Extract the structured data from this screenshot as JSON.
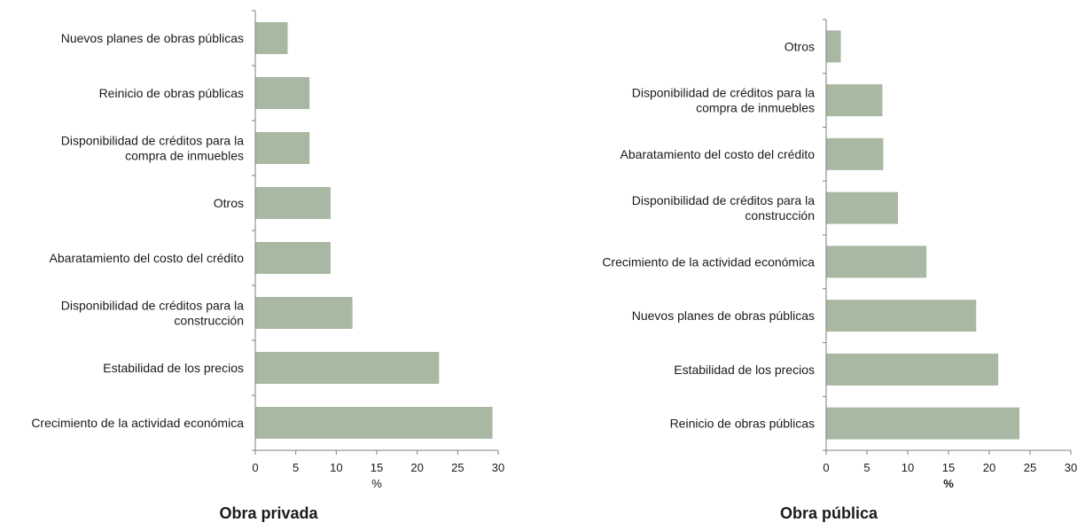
{
  "colors": {
    "bar": "#a9b8a3",
    "axis": "#7f7f7f"
  },
  "chart_data": [
    {
      "type": "bar",
      "orientation": "horizontal",
      "title": "Obra privada",
      "xlabel": "%",
      "xlabel_bold": false,
      "xlim": [
        0,
        30
      ],
      "xticks": [
        0,
        5,
        10,
        15,
        20,
        25,
        30
      ],
      "categories": [
        "Nuevos planes de obras públicas",
        "Reinicio de obras públicas",
        "Disponibilidad de créditos para la compra de inmuebles",
        "Otros",
        "Abaratamiento del costo del crédito",
        "Disponibilidad de créditos para la construcción",
        "Estabilidad de los precios",
        "Crecimiento de la actividad económica"
      ],
      "label_lines": [
        [
          "Nuevos planes de obras públicas"
        ],
        [
          "Reinicio de obras públicas"
        ],
        [
          "Disponibilidad de créditos para la",
          "compra de inmuebles"
        ],
        [
          "Otros"
        ],
        [
          "Abaratamiento del costo del crédito"
        ],
        [
          "Disponibilidad de créditos para la",
          "construcción"
        ],
        [
          "Estabilidad de los precios"
        ],
        [
          "Crecimiento de la actividad económica"
        ]
      ],
      "values": [
        4.0,
        6.7,
        6.7,
        9.3,
        9.3,
        12.0,
        22.7,
        29.3
      ],
      "grid": false,
      "legend": "none"
    },
    {
      "type": "bar",
      "orientation": "horizontal",
      "title": "Obra pública",
      "xlabel": "%",
      "xlabel_bold": true,
      "xlim": [
        0,
        30
      ],
      "xticks": [
        0,
        5,
        10,
        15,
        20,
        25,
        30
      ],
      "categories": [
        "Otros",
        "Disponibilidad de créditos para la compra de inmuebles",
        "Abaratamiento del costo del crédito",
        "Disponibilidad de créditos para la construcción",
        "Crecimiento de la actividad económica",
        "Nuevos planes de obras públicas",
        "Estabilidad de los precios",
        "Reinicio de obras públicas"
      ],
      "label_lines": [
        [
          "Otros"
        ],
        [
          "Disponibilidad de créditos para la",
          "compra de inmuebles"
        ],
        [
          "Abaratamiento del costo del crédito"
        ],
        [
          "Disponibilidad de créditos para la",
          "construcción"
        ],
        [
          "Crecimiento de la actividad económica"
        ],
        [
          "Nuevos planes de obras públicas"
        ],
        [
          "Estabilidad de los precios"
        ],
        [
          "Reinicio de obras públicas"
        ]
      ],
      "values": [
        1.8,
        6.9,
        7.0,
        8.8,
        12.3,
        18.4,
        21.1,
        23.7
      ],
      "grid": false,
      "legend": "none"
    }
  ]
}
